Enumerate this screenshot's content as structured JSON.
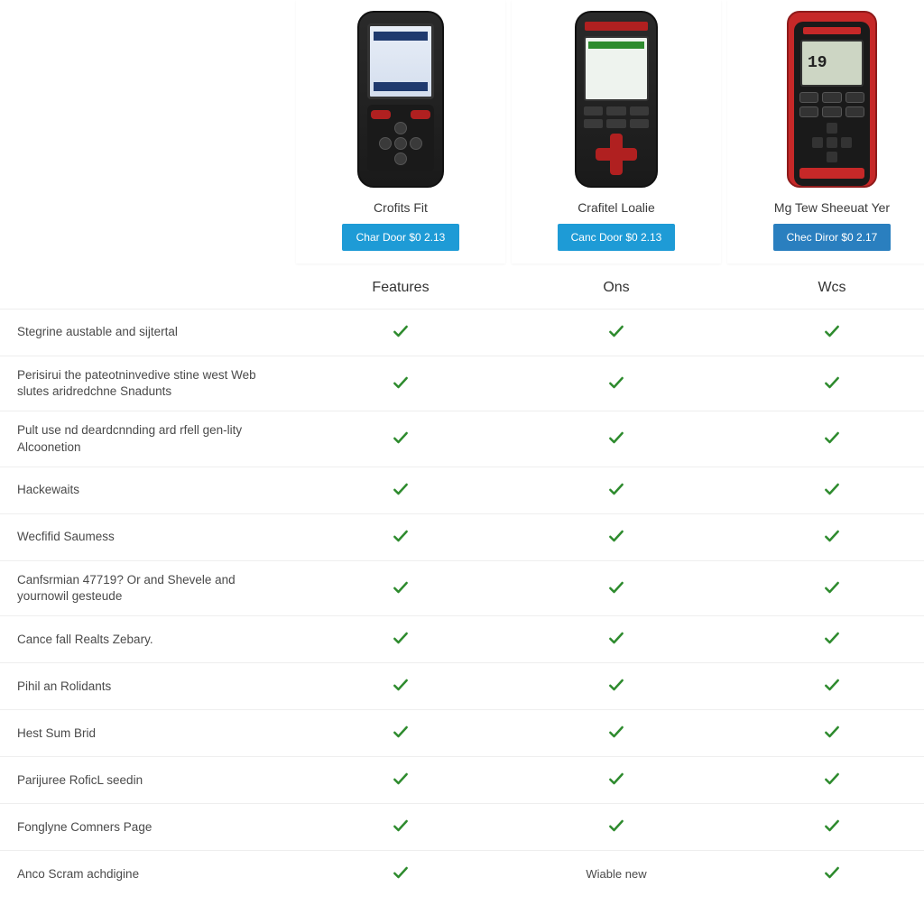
{
  "colors": {
    "cta_bg": "#1e9bd6",
    "cta_bg_alt": "#2a7fbf",
    "check_color": "#2e8b2e",
    "row_border": "#eeeeee",
    "text": "#4a4a4a",
    "background": "#ffffff"
  },
  "products": [
    {
      "name": "Crofits Fit",
      "cta": "Char Door $0 2.13"
    },
    {
      "name": "Crafitel Loalie",
      "cta": "Canc Door $0 2.13"
    },
    {
      "name": "Mg Tew Sheeuat Yer",
      "cta": "Chec Diror $0 2.17"
    }
  ],
  "section_headers": [
    "Features",
    "Ons",
    "Wcs"
  ],
  "features": [
    {
      "label": "Stegrine austable and sijtertal",
      "cells": [
        "check",
        "check",
        "check"
      ]
    },
    {
      "label": "Perisirui the pateotninvedive stine west Web slutes aridredchne Snadunts",
      "cells": [
        "check",
        "check",
        "check"
      ]
    },
    {
      "label": "Pult use nd deardcnnding ard rfell gen-lity Alcoonetion",
      "cells": [
        "check",
        "check",
        "check"
      ]
    },
    {
      "label": "Hackewaits",
      "cells": [
        "check",
        "check",
        "check"
      ]
    },
    {
      "label": "Wecfifid Saumess",
      "cells": [
        "check",
        "check",
        "check"
      ]
    },
    {
      "label": "Canfsrmian 47719? Or and Shevele and yournowil gesteude",
      "cells": [
        "check",
        "check",
        "check"
      ]
    },
    {
      "label": "Cance fall Realts Zebary.",
      "cells": [
        "check",
        "check",
        "check"
      ]
    },
    {
      "label": "Pihil an Rolidants",
      "cells": [
        "check",
        "check",
        "check"
      ]
    },
    {
      "label": "Hest Sum Brid",
      "cells": [
        "check",
        "check",
        "check"
      ]
    },
    {
      "label": "Parijuree RoficL seedin",
      "cells": [
        "check",
        "check",
        "check"
      ]
    },
    {
      "label": "Fonglyne Comners Page",
      "cells": [
        "check",
        "check",
        "check"
      ]
    },
    {
      "label": "Anco Scram achdigine",
      "cells": [
        "check",
        "Wiable new",
        "check"
      ]
    }
  ]
}
